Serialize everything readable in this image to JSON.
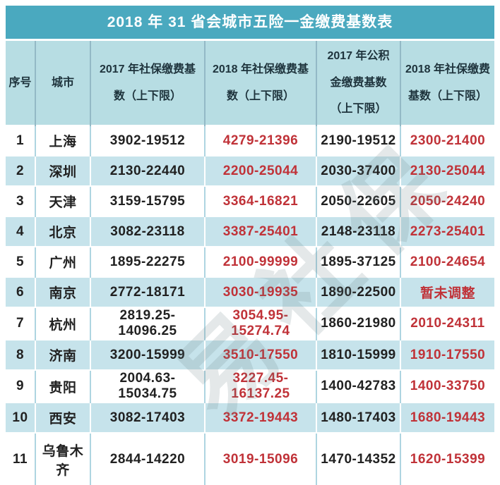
{
  "title": "2018 年 31 省会城市五险一金缴费基数表",
  "watermark": "易社保",
  "colors": {
    "title_bar": "#4AA9BF",
    "header_bg": "#B7DDE3",
    "band_row_bg": "#C6E3EB",
    "highlight_red": "#C03238",
    "body_text": "#212121"
  },
  "chart_data": {
    "type": "table",
    "title": "2018 年 31 省会城市五险一金缴费基数表",
    "columns": [
      {
        "key": "index",
        "label": "序号",
        "red": false
      },
      {
        "key": "city",
        "label": "城市",
        "red": false
      },
      {
        "key": "sb2017",
        "label": "2017 年社保缴费基\n数（上下限）",
        "red": false
      },
      {
        "key": "sb2018",
        "label": "2018 年社保缴费基\n数（上下限）",
        "red": true
      },
      {
        "key": "gjj2017",
        "label": "2017 年公积\n金缴费基数\n（上下限）",
        "red": false
      },
      {
        "key": "sb2018b",
        "label": "2018 年社保缴费\n基数（上下限）",
        "red": true
      }
    ],
    "rows": [
      {
        "index": "1",
        "city": "上海",
        "sb2017": "3902-19512",
        "sb2018": "4279-21396",
        "gjj2017": "2190-19512",
        "sb2018b": "2300-21400"
      },
      {
        "index": "2",
        "city": "深圳",
        "sb2017": "2130-22440",
        "sb2018": "2200-25044",
        "gjj2017": "2030-37400",
        "sb2018b": "2130-25044"
      },
      {
        "index": "3",
        "city": "天津",
        "sb2017": "3159-15795",
        "sb2018": "3364-16821",
        "gjj2017": "2050-22605",
        "sb2018b": "2050-24240"
      },
      {
        "index": "4",
        "city": "北京",
        "sb2017": "3082-23118",
        "sb2018": "3387-25401",
        "gjj2017": "2148-23118",
        "sb2018b": "2273-25401"
      },
      {
        "index": "5",
        "city": "广州",
        "sb2017": "1895-22275",
        "sb2018": "2100-99999",
        "gjj2017": "1895-37125",
        "sb2018b": "2100-24654"
      },
      {
        "index": "6",
        "city": "南京",
        "sb2017": "2772-18171",
        "sb2018": "3030-19935",
        "gjj2017": "1890-22500",
        "sb2018b": "暂未调整"
      },
      {
        "index": "7",
        "city": "杭州",
        "sb2017": "2819.25-14096.25",
        "sb2018": "3054.95-15274.74",
        "gjj2017": "1860-21980",
        "sb2018b": "2010-24311"
      },
      {
        "index": "8",
        "city": "济南",
        "sb2017": "3200-15999",
        "sb2018": "3510-17550",
        "gjj2017": "1810-15999",
        "sb2018b": "1910-17550"
      },
      {
        "index": "9",
        "city": "贵阳",
        "sb2017": "2004.63-15034.75",
        "sb2018": "3227.45-16137.25",
        "gjj2017": "1400-42783",
        "sb2018b": "1400-33750"
      },
      {
        "index": "10",
        "city": "西安",
        "sb2017": "3082-17403",
        "sb2018": "3372-19443",
        "gjj2017": "1480-17403",
        "sb2018b": "1680-19443"
      },
      {
        "index": "11",
        "city": "乌鲁木齐",
        "sb2017": "2844-14220",
        "sb2018": "3019-15096",
        "gjj2017": "1470-14352",
        "sb2018b": "1620-15399"
      }
    ]
  }
}
